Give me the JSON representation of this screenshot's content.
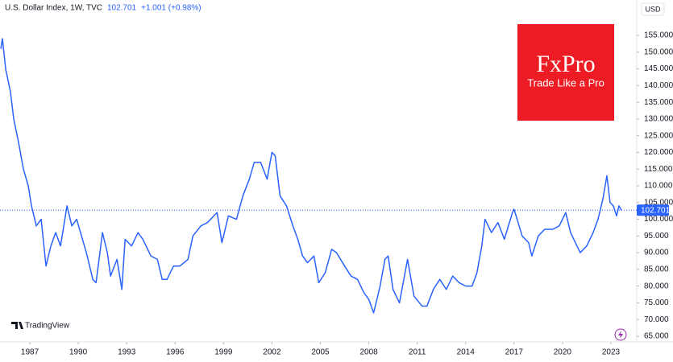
{
  "chart_data": {
    "type": "line",
    "title": "U.S. Dollar Index, 1W, TVC",
    "last_price": 102.701,
    "change_label": "+1.001 (+0.98%)",
    "currency": "USD",
    "brand": "FxPro",
    "slogan": "Trade Like a Pro",
    "watermark": "TradingView",
    "xlim": [
      1985.15,
      2024.6
    ],
    "ylim": [
      63.3,
      165.6
    ],
    "xticks": [
      1987,
      1990,
      1993,
      1996,
      1999,
      2002,
      2005,
      2008,
      2011,
      2014,
      2017,
      2020,
      2023
    ],
    "yticks": [
      {
        "value": 65,
        "label": "65.000"
      },
      {
        "value": 70,
        "label": "70.000"
      },
      {
        "value": 75,
        "label": "75.000"
      },
      {
        "value": 80,
        "label": "80.000"
      },
      {
        "value": 85,
        "label": "85.000"
      },
      {
        "value": 90,
        "label": "90.000"
      },
      {
        "value": 95,
        "label": "95.000"
      },
      {
        "value": 100,
        "label": "100.000"
      },
      {
        "value": 105,
        "label": "105.000"
      },
      {
        "value": 110,
        "label": "110.000"
      },
      {
        "value": 115,
        "label": "115.000"
      },
      {
        "value": 120,
        "label": "120.000"
      },
      {
        "value": 125,
        "label": "125.000"
      },
      {
        "value": 130,
        "label": "130.000"
      },
      {
        "value": 135,
        "label": "135.000"
      },
      {
        "value": 140,
        "label": "140.000"
      },
      {
        "value": 145,
        "label": "145.000"
      },
      {
        "value": 150,
        "label": "150.000"
      },
      {
        "value": 155,
        "label": "155.000"
      }
    ],
    "x": [
      1985.2,
      1985.3,
      1985.5,
      1985.8,
      1986.0,
      1986.3,
      1986.6,
      1986.9,
      1987.1,
      1987.4,
      1987.7,
      1988.0,
      1988.3,
      1988.6,
      1988.9,
      1989.3,
      1989.6,
      1989.9,
      1990.2,
      1990.5,
      1990.9,
      1991.1,
      1991.5,
      1991.8,
      1992.0,
      1992.4,
      1992.7,
      1992.9,
      1993.3,
      1993.7,
      1994.0,
      1994.5,
      1994.9,
      1995.2,
      1995.5,
      1995.9,
      1996.3,
      1996.8,
      1997.1,
      1997.6,
      1998.0,
      1998.6,
      1998.9,
      1999.3,
      1999.8,
      2000.2,
      2000.6,
      2000.9,
      2001.3,
      2001.7,
      2002.0,
      2002.2,
      2002.5,
      2002.9,
      2003.3,
      2003.6,
      2003.9,
      2004.2,
      2004.6,
      2004.9,
      2005.3,
      2005.7,
      2006.0,
      2006.5,
      2006.9,
      2007.3,
      2007.7,
      2008.0,
      2008.3,
      2008.7,
      2009.0,
      2009.2,
      2009.5,
      2009.9,
      2010.4,
      2010.8,
      2011.3,
      2011.6,
      2012.0,
      2012.4,
      2012.8,
      2013.2,
      2013.6,
      2014.0,
      2014.4,
      2014.7,
      2015.0,
      2015.2,
      2015.6,
      2016.0,
      2016.4,
      2016.9,
      2017.0,
      2017.5,
      2017.9,
      2018.1,
      2018.5,
      2018.9,
      2019.4,
      2019.8,
      2020.2,
      2020.5,
      2020.9,
      2021.1,
      2021.5,
      2021.9,
      2022.2,
      2022.5,
      2022.75,
      2022.95,
      2023.15,
      2023.35,
      2023.5,
      2023.65
    ],
    "series": [
      {
        "name": "U.S. Dollar Index",
        "color": "#2962ff",
        "values": [
          151,
          154,
          145,
          138,
          130,
          123,
          115,
          110,
          104,
          98,
          100,
          86,
          92,
          96,
          92,
          104,
          98,
          100,
          95,
          90,
          82,
          81,
          96,
          90,
          83,
          88,
          79,
          94,
          92,
          96,
          94,
          89,
          88,
          82,
          82,
          86,
          86,
          88,
          95,
          98,
          99,
          102,
          93,
          101,
          100,
          107,
          112,
          117,
          117,
          112,
          120,
          119,
          107,
          104,
          98,
          94,
          89,
          87,
          89,
          81,
          84,
          91,
          90,
          86,
          83,
          82,
          78,
          76,
          72,
          80,
          88,
          89,
          79,
          75,
          88,
          77,
          74,
          74,
          79,
          82,
          79,
          83,
          81,
          80,
          80,
          84,
          92,
          100,
          96,
          99,
          94,
          102,
          103,
          95,
          93,
          89,
          95,
          97,
          97,
          98,
          102,
          96,
          92,
          90,
          92,
          96,
          100,
          106,
          113,
          105,
          104,
          101,
          104,
          102.701
        ]
      }
    ]
  }
}
